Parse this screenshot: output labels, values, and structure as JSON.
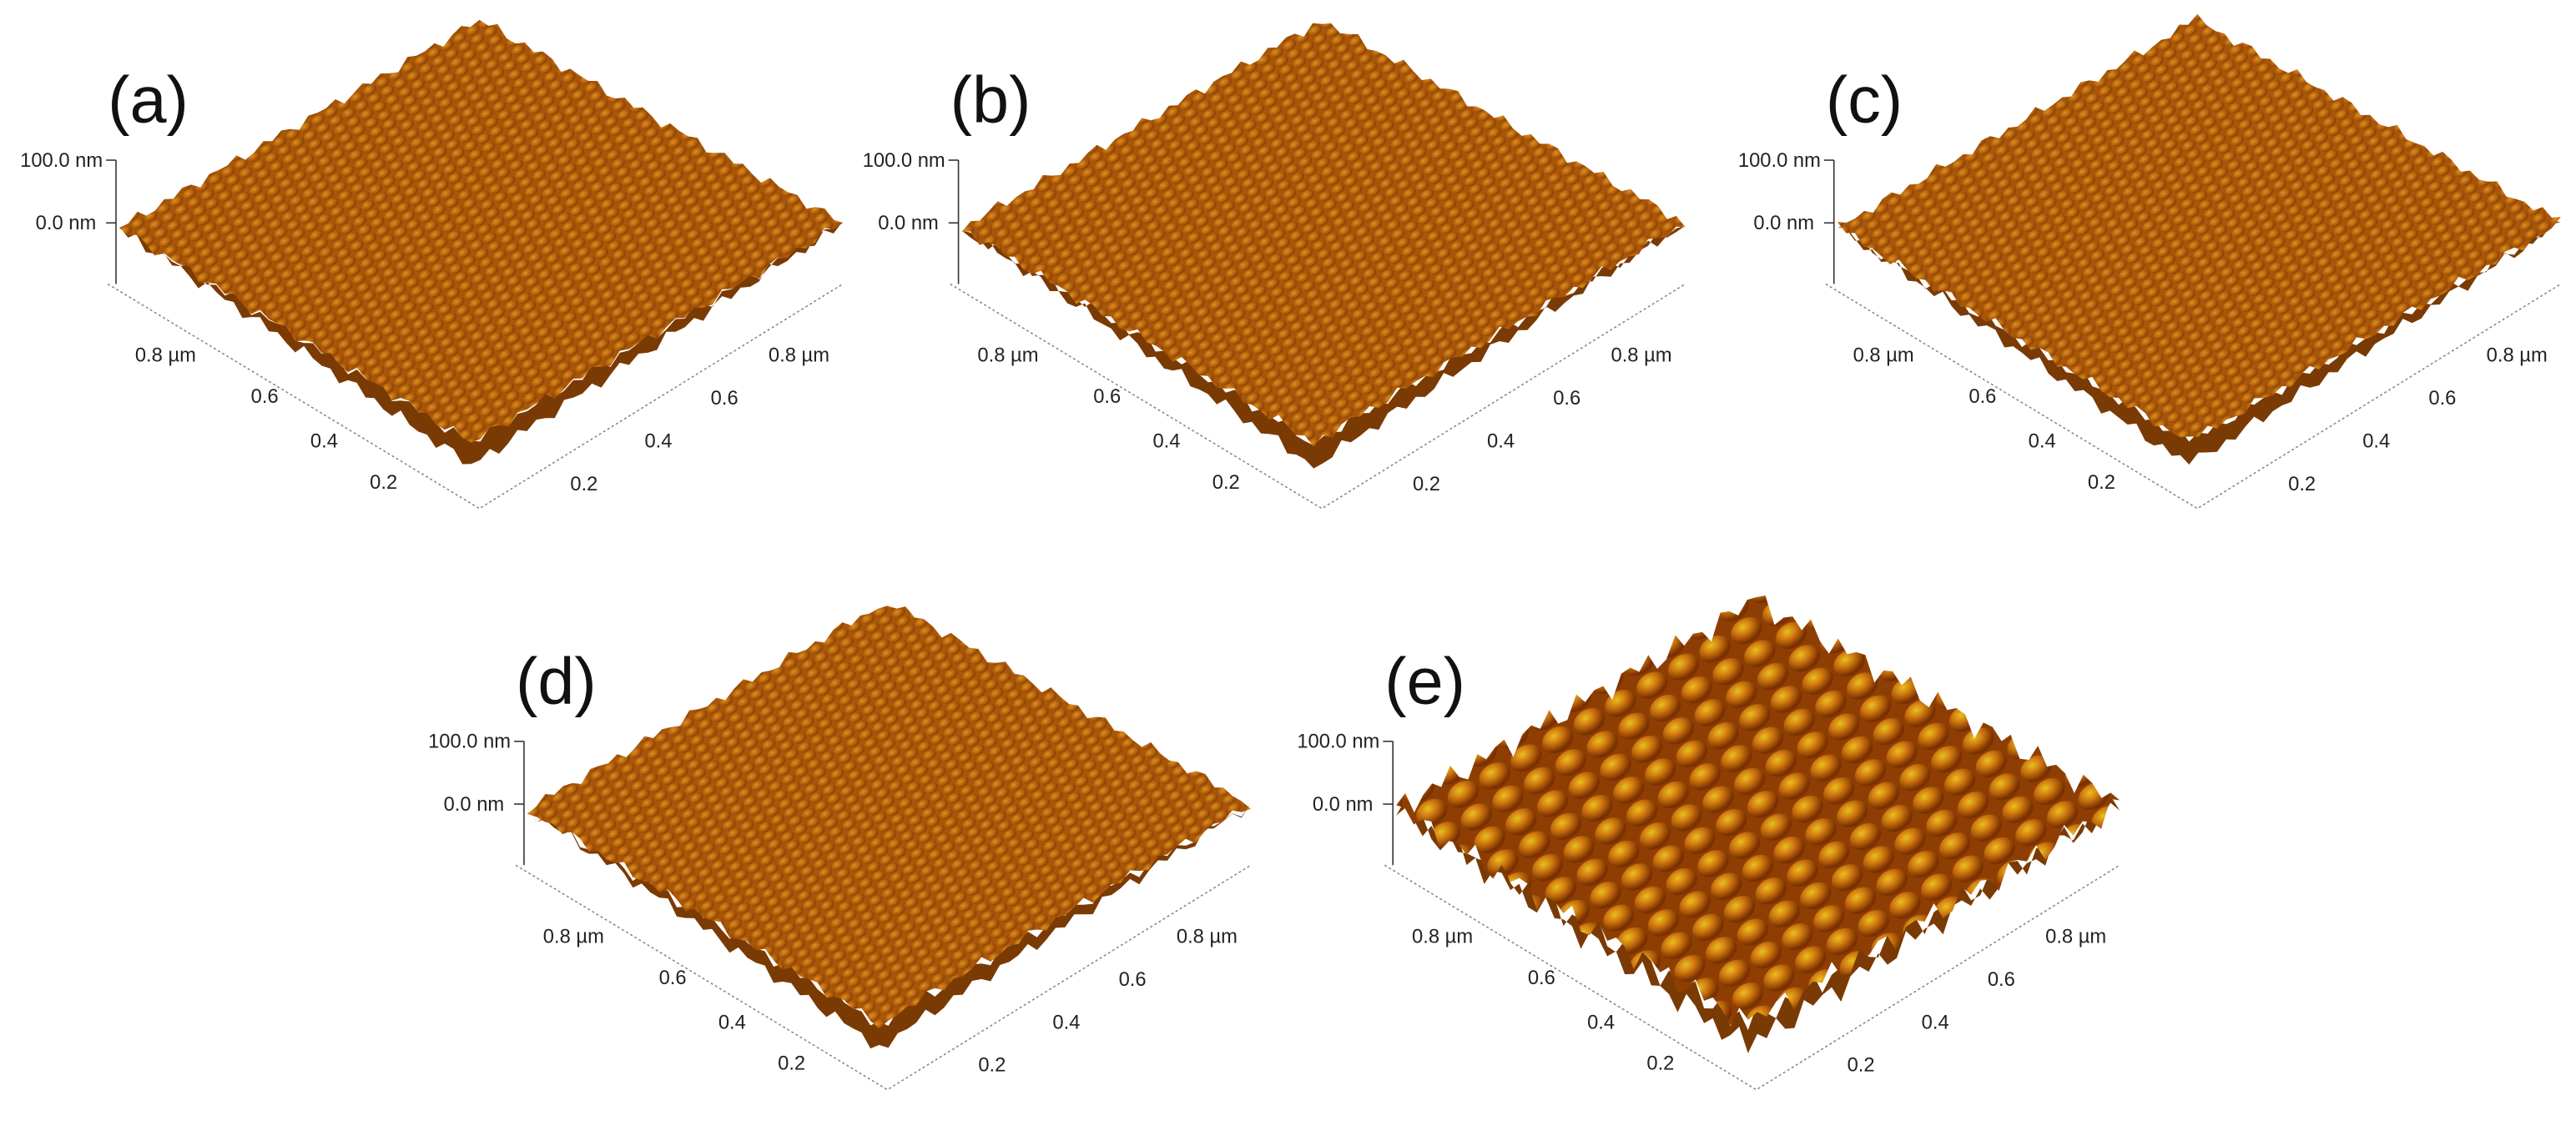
{
  "panels": [
    {
      "label": "(a)",
      "z_ticks": [
        "100.0 nm",
        "0.0 nm"
      ],
      "left_ticks": [
        "0.8 µm",
        "0.6",
        "0.4",
        "0.2"
      ],
      "right_ticks": [
        "0.8 µm",
        "0.6",
        "0.4",
        "0.2"
      ]
    },
    {
      "label": "(b)",
      "z_ticks": [
        "100.0 nm",
        "0.0 nm"
      ],
      "left_ticks": [
        "0.8 µm",
        "0.6",
        "0.4",
        "0.2"
      ],
      "right_ticks": [
        "0.8 µm",
        "0.6",
        "0.4",
        "0.2"
      ]
    },
    {
      "label": "(c)",
      "z_ticks": [
        "100.0 nm",
        "0.0 nm"
      ],
      "left_ticks": [
        "0.8 µm",
        "0.6",
        "0.4",
        "0.2"
      ],
      "right_ticks": [
        "0.8 µm",
        "0.6",
        "0.4",
        "0.2"
      ]
    },
    {
      "label": "(d)",
      "z_ticks": [
        "100.0 nm",
        "0.0 nm"
      ],
      "left_ticks": [
        "0.8 µm",
        "0.6",
        "0.4",
        "0.2"
      ],
      "right_ticks": [
        "0.8 µm",
        "0.6",
        "0.4",
        "0.2"
      ]
    },
    {
      "label": "(e)",
      "z_ticks": [
        "100.0 nm",
        "0.0 nm"
      ],
      "left_ticks": [
        "0.8 µm",
        "0.6",
        "0.4",
        "0.2"
      ],
      "right_ticks": [
        "0.8 µm",
        "0.6",
        "0.4",
        "0.2"
      ]
    }
  ]
}
